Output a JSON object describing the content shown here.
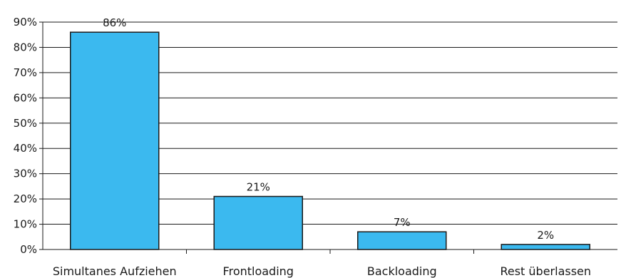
{
  "chart_data": {
    "type": "bar",
    "title": "",
    "xlabel": "",
    "ylabel": "",
    "categories": [
      "Simultanes Aufziehen",
      "Frontloading",
      "Backloading",
      "Rest überlassen"
    ],
    "values": [
      86,
      21,
      7,
      2
    ],
    "data_labels": [
      "86%",
      "21%",
      "7%",
      "2%"
    ],
    "ylim": [
      0,
      90
    ],
    "yticks": [
      0,
      10,
      20,
      30,
      40,
      50,
      60,
      70,
      80,
      90
    ],
    "ytick_labels": [
      "0%",
      "10%",
      "20%",
      "30%",
      "40%",
      "50%",
      "60%",
      "70%",
      "80%",
      "90%"
    ],
    "grid": true,
    "legend": "none",
    "bar_color": "#3bb9ef",
    "bar_edge_color": "#1a1a1a"
  }
}
